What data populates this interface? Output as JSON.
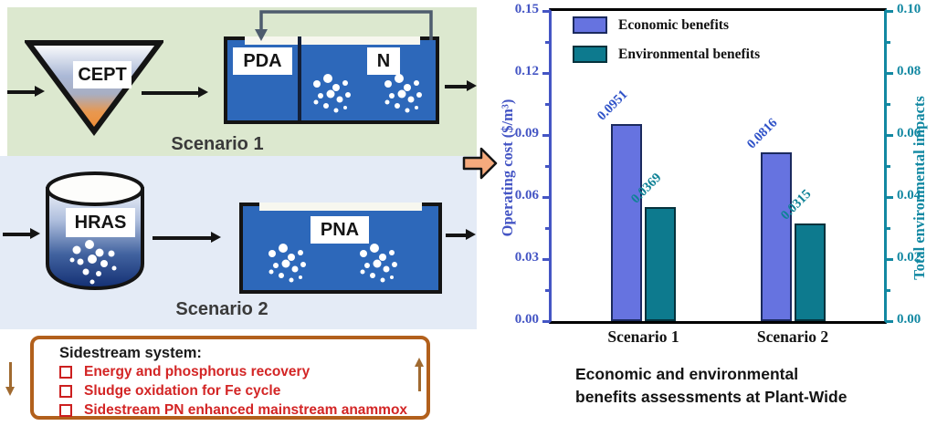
{
  "diagram": {
    "scenario1": {
      "label": "Scenario 1",
      "funnel_label": "CEPT",
      "tank_compartments": [
        "PDA",
        "N"
      ]
    },
    "scenario2": {
      "label": "Scenario 2",
      "cylinder_label": "HRAS",
      "tank_label": "PNA"
    },
    "sidestream": {
      "title": "Sidestream system:",
      "items": [
        "Energy and phosphorus recovery",
        "Sludge oxidation for Fe cycle",
        "Sidestream PN enhanced mainstream anammox"
      ]
    }
  },
  "chart_data": {
    "type": "bar",
    "categories": [
      "Scenario 1",
      "Scenario 2"
    ],
    "series": [
      {
        "name": "Economic benefits",
        "axis": "left",
        "color": "#6673e0",
        "border": "#1b2a5e",
        "label_color": "#2f52c8",
        "values": [
          0.0951,
          0.0816
        ],
        "value_labels": [
          "0.0951",
          "0.0816"
        ]
      },
      {
        "name": "Environmental benefits",
        "axis": "right",
        "color": "#0d7a8e",
        "border": "#05323c",
        "label_color": "#0f8296",
        "values": [
          0.0369,
          0.0315
        ],
        "value_labels": [
          "0.0369",
          "0.0315"
        ]
      }
    ],
    "left_axis": {
      "label": "Operating cost ($/m³)",
      "min": 0.0,
      "max": 0.15,
      "ticks": [
        "0.00",
        "0.03",
        "0.06",
        "0.09",
        "0.12",
        "0.15"
      ],
      "color": "#4455c4"
    },
    "right_axis": {
      "label": "Total environmental impacts",
      "min": 0.0,
      "max": 0.1,
      "ticks": [
        "0.00",
        "0.02",
        "0.04",
        "0.06",
        "0.08",
        "0.10"
      ],
      "color": "#1288a2"
    },
    "legend_position": "top-left",
    "grid": false,
    "caption_lines": [
      "Economic and environmental",
      "benefits assessments at Plant-Wide"
    ]
  },
  "colors": {
    "scenario1_panel": "#dce8cf",
    "scenario2_panel": "#e4ebf6",
    "tank_fill": "#2d68ba",
    "funnel_orange": "#ef9140",
    "block_arrow_fill": "#f5aa7d",
    "recycle_arrow": "#4e5c6e",
    "sidestream_border": "#b2601c",
    "sidestream_red": "#d32525"
  }
}
